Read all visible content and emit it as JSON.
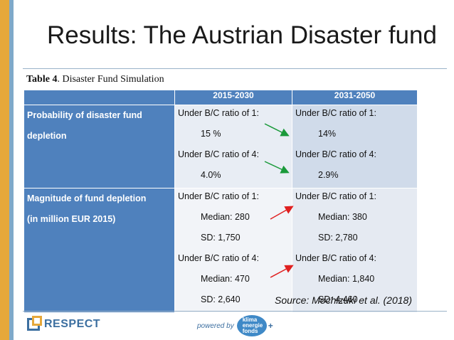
{
  "slide": {
    "title": "Results: The Austrian Disaster fund",
    "caption_label": "Table 4",
    "caption_text": ". Disaster Fund Simulation",
    "source": "Source: Mochizuki et al. (2018)"
  },
  "table": {
    "columns": [
      "",
      "2015-2030",
      "2031-2050"
    ],
    "rows": [
      {
        "label_lines": [
          "Probability of disaster fund",
          "depletion"
        ],
        "col1": [
          "Under B/C ratio of 1:",
          "15 %",
          "Under B/C ratio of 4:",
          "4.0%"
        ],
        "col2": [
          "Under B/C ratio of 1:",
          "14%",
          "Under B/C ratio of 4:",
          "2.9%"
        ]
      },
      {
        "label_lines": [
          "Magnitude of fund depletion",
          "(in million EUR 2015)"
        ],
        "col1": [
          "Under B/C ratio of 1:",
          "Median: 280",
          "SD: 1,750",
          "Under B/C ratio of 4:",
          "Median: 470",
          "SD: 2,640"
        ],
        "col2": [
          "Under B/C ratio of 1:",
          "Median: 380",
          "SD: 2,780",
          "Under  B/C ratio of 4:",
          "Median: 1,840",
          "SD: 4,460"
        ]
      }
    ]
  },
  "footer": {
    "logo_text": "RESPECT",
    "powered_text": "powered by",
    "klima_lines": [
      "klima",
      "energie",
      "fonds"
    ],
    "klima_plus": "+"
  },
  "colors": {
    "header_blue": "#4f81bd",
    "arrow_down": "#1a9a3a",
    "arrow_up": "#e02020"
  }
}
